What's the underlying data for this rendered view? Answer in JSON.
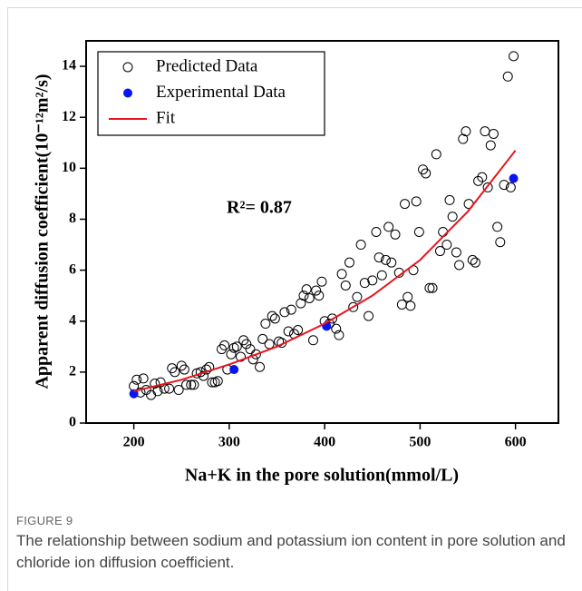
{
  "chart_data": {
    "type": "scatter",
    "xlabel": "Na+K in the pore solution(mmol/L)",
    "ylabel": "Apparent diffusion coefficient(10⁻¹²m²/s)",
    "annotation": "R²= 0.87",
    "xlim": [
      150,
      645
    ],
    "ylim": [
      0,
      15
    ],
    "xticks": [
      200,
      300,
      400,
      500,
      600
    ],
    "yticks": [
      0,
      2,
      4,
      6,
      8,
      10,
      12,
      14
    ],
    "legend": "upper left",
    "series": [
      {
        "name": "Predicted Data",
        "type": "scatter",
        "color": "#000000",
        "filled": false,
        "x": [
          200,
          203,
          207,
          210,
          213,
          218,
          222,
          225,
          228,
          232,
          237,
          240,
          243,
          247,
          250,
          253,
          255,
          260,
          263,
          266,
          270,
          273,
          276,
          279,
          282,
          285,
          288,
          292,
          295,
          298,
          302,
          305,
          308,
          312,
          315,
          318,
          322,
          325,
          328,
          332,
          335,
          338,
          342,
          345,
          348,
          352,
          355,
          358,
          362,
          365,
          368,
          372,
          375,
          378,
          381,
          384,
          388,
          391,
          394,
          397,
          400,
          405,
          408,
          412,
          415,
          418,
          422,
          426,
          430,
          434,
          438,
          442,
          446,
          450,
          454,
          457,
          460,
          464,
          467,
          470,
          474,
          478,
          481,
          484,
          487,
          490,
          493,
          496,
          499,
          503,
          506,
          510,
          513,
          517,
          521,
          524,
          528,
          531,
          534,
          538,
          541,
          545,
          548,
          551,
          555,
          558,
          561,
          565,
          568,
          571,
          574,
          577,
          581,
          584,
          588,
          592,
          595,
          598
        ],
        "values": [
          1.45,
          1.7,
          1.2,
          1.75,
          1.3,
          1.1,
          1.55,
          1.25,
          1.6,
          1.35,
          1.35,
          2.15,
          2.0,
          1.3,
          2.25,
          2.1,
          1.5,
          1.5,
          1.5,
          1.95,
          2.0,
          1.85,
          2.1,
          2.2,
          1.6,
          1.6,
          1.65,
          2.9,
          3.05,
          2.1,
          2.7,
          2.95,
          3.0,
          2.6,
          3.25,
          3.1,
          2.9,
          2.5,
          2.7,
          2.2,
          3.3,
          3.9,
          3.1,
          4.2,
          4.1,
          3.2,
          3.15,
          4.35,
          3.6,
          4.45,
          3.5,
          3.65,
          4.7,
          5.0,
          5.25,
          4.9,
          3.25,
          5.2,
          5.0,
          5.55,
          4.0,
          3.9,
          4.1,
          3.7,
          3.45,
          5.85,
          5.4,
          6.3,
          4.55,
          4.95,
          7.0,
          5.5,
          4.2,
          5.6,
          7.5,
          6.5,
          5.8,
          6.4,
          7.7,
          6.3,
          7.4,
          5.9,
          4.65,
          8.6,
          4.95,
          4.6,
          6.0,
          8.7,
          7.5,
          9.95,
          9.8,
          5.3,
          5.3,
          10.55,
          6.75,
          7.5,
          7.0,
          8.75,
          8.1,
          6.7,
          6.2,
          11.15,
          11.45,
          8.6,
          6.4,
          6.3,
          9.5,
          9.65,
          11.45,
          9.25,
          10.9,
          11.35,
          7.7,
          7.1,
          9.35,
          13.6,
          9.25,
          14.4
        ]
      },
      {
        "name": "Experimental Data",
        "type": "scatter",
        "color": "#0a14f0",
        "filled": true,
        "x": [
          200,
          305,
          402,
          598
        ],
        "values": [
          1.15,
          2.1,
          3.8,
          9.6
        ]
      },
      {
        "name": "Fit",
        "type": "line",
        "color": "#e8141e",
        "x": [
          200,
          250,
          300,
          350,
          400,
          450,
          500,
          550,
          600
        ],
        "values": [
          1.25,
          1.7,
          2.3,
          3.0,
          3.9,
          5.0,
          6.4,
          8.3,
          10.7
        ]
      }
    ]
  },
  "figure_label": "FIGURE 9",
  "caption": "The relationship between sodium and potassium ion content in pore solution and chloride ion diffusion coefficient."
}
